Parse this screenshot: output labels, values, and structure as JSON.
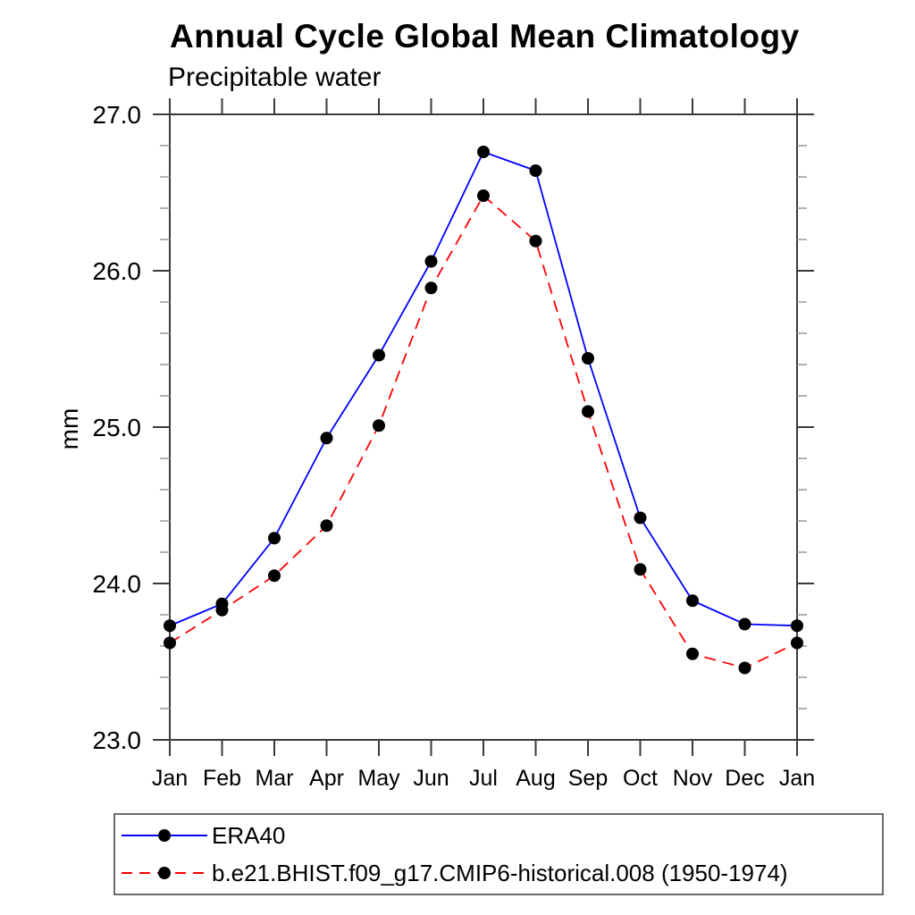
{
  "chart_data": {
    "type": "line",
    "title": "Annual Cycle Global Mean Climatology",
    "subtitle": "Precipitable water",
    "ylabel": "mm",
    "categories": [
      "Jan",
      "Feb",
      "Mar",
      "Apr",
      "May",
      "Jun",
      "Jul",
      "Aug",
      "Sep",
      "Oct",
      "Nov",
      "Dec",
      "Jan"
    ],
    "ylim": [
      23.0,
      27.0
    ],
    "ytick_step": 1.0,
    "yminor_step": 0.2,
    "ytick_labels": [
      "23.0",
      "24.0",
      "25.0",
      "26.0",
      "27.0"
    ],
    "grid": false,
    "legend_position": "bottom-left",
    "series": [
      {
        "name": "ERA40",
        "color": "#0000ff",
        "line_style": "solid",
        "marker": "circle",
        "marker_color": "#000000",
        "values": [
          23.73,
          23.87,
          24.29,
          24.93,
          25.46,
          26.06,
          26.76,
          26.64,
          25.44,
          24.42,
          23.89,
          23.74,
          23.73
        ]
      },
      {
        "name": "b.e21.BHIST.f09_g17.CMIP6-historical.008 (1950-1974)",
        "color": "#ff0000",
        "line_style": "dashed",
        "marker": "circle",
        "marker_color": "#000000",
        "values": [
          23.62,
          23.83,
          24.05,
          24.37,
          25.01,
          25.89,
          26.48,
          26.19,
          25.1,
          24.09,
          23.55,
          23.46,
          23.62
        ]
      }
    ]
  }
}
